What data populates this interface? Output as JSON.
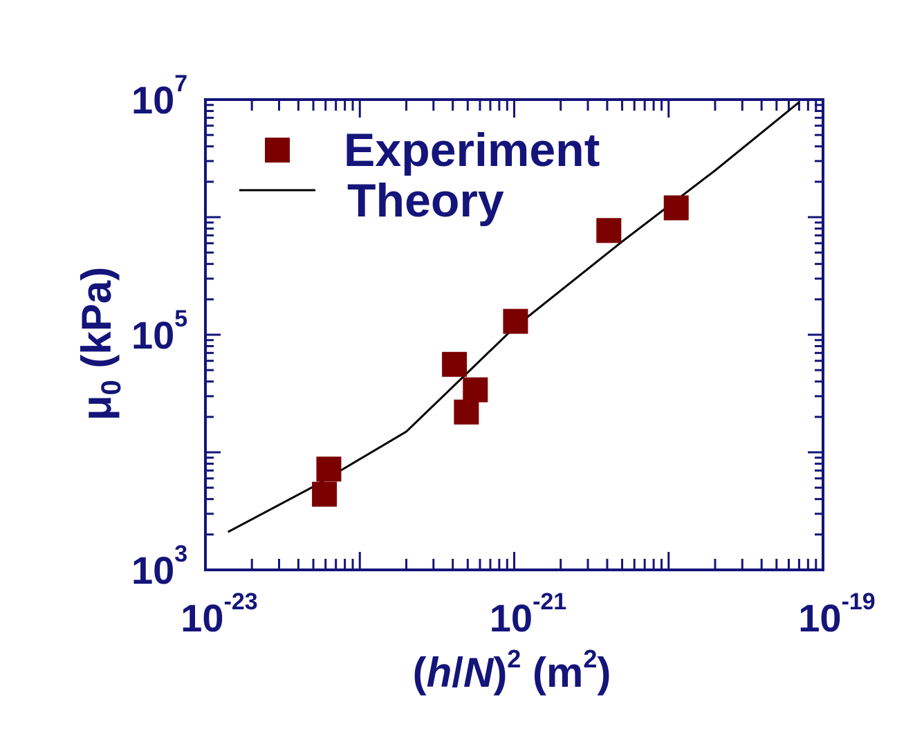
{
  "chart_data": {
    "type": "scatter",
    "x_scale": "log",
    "y_scale": "log",
    "xlim": [
      1e-23,
      1e-19
    ],
    "ylim": [
      1000,
      10000000
    ],
    "grid": false,
    "legend_placement": "top-left",
    "x_ticks": [
      {
        "value": 1e-23,
        "base": "10",
        "exp": "-23"
      },
      {
        "value": 1e-21,
        "base": "10",
        "exp": "-21"
      },
      {
        "value": 1e-19,
        "base": "10",
        "exp": "-19"
      }
    ],
    "y_ticks": [
      {
        "value": 1000,
        "base": "10",
        "exp": "3"
      },
      {
        "value": 100000,
        "base": "10",
        "exp": "5"
      },
      {
        "value": 10000000,
        "base": "10",
        "exp": "7"
      }
    ],
    "xlabel": {
      "open": "(",
      "h": "h",
      "slash": "/",
      "n": "N",
      "close": ")",
      "pow": "2",
      "unit_open": " (m",
      "unit_pow": "2",
      "unit_close": ")"
    },
    "ylabel": {
      "mu": "μ",
      "sub": "0",
      "unit": " (kPa)"
    },
    "series": [
      {
        "name": "Experiment",
        "kind": "scatter",
        "color": "#7b0000",
        "points": [
          {
            "x": 5.9e-23,
            "y": 4400
          },
          {
            "x": 6.3e-23,
            "y": 7200
          },
          {
            "x": 4.1e-22,
            "y": 56000
          },
          {
            "x": 5.6e-22,
            "y": 34000
          },
          {
            "x": 4.9e-22,
            "y": 22000
          },
          {
            "x": 1.02e-21,
            "y": 130000
          },
          {
            "x": 4.1e-21,
            "y": 770000
          },
          {
            "x": 1.12e-20,
            "y": 1200000
          }
        ]
      },
      {
        "name": "Theory",
        "kind": "line",
        "color": "#000000",
        "points": [
          {
            "x": 1.4e-23,
            "y": 2100
          },
          {
            "x": 5e-23,
            "y": 5100
          },
          {
            "x": 2e-22,
            "y": 15000
          },
          {
            "x": 1e-21,
            "y": 115000
          },
          {
            "x": 5e-21,
            "y": 620000
          },
          {
            "x": 2e-20,
            "y": 2500000
          },
          {
            "x": 7e-20,
            "y": 9500000
          }
        ]
      }
    ]
  }
}
